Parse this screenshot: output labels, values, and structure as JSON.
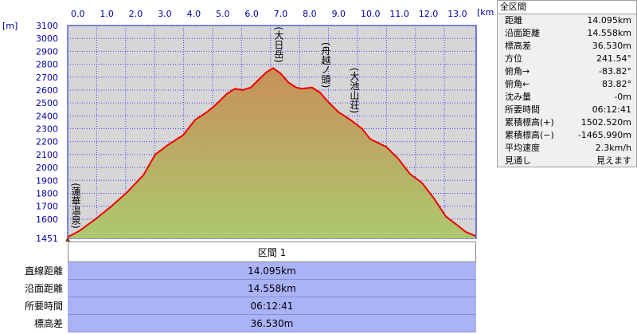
{
  "chart_data": {
    "type": "area",
    "y_unit": "[m]",
    "x_unit": "[km]",
    "x": [
      0,
      0.41,
      0.96,
      1.51,
      2.06,
      2.61,
      3.02,
      3.43,
      3.98,
      4.4,
      4.81,
      5.08,
      5.49,
      5.77,
      6.04,
      6.32,
      6.59,
      6.87,
      7.09,
      7.34,
      7.61,
      7.88,
      8.1,
      8.43,
      8.71,
      8.98,
      9.34,
      9.75,
      10.16,
      10.44,
      10.99,
      11.4,
      11.81,
      12.23,
      12.64,
      13.05,
      13.46,
      13.74,
      14.07
    ],
    "series": [
      {
        "color": "#ee0000",
        "values": [
          1460,
          1510,
          1600,
          1700,
          1810,
          1940,
          2100,
          2170,
          2250,
          2370,
          2430,
          2480,
          2570,
          2610,
          2600,
          2620,
          2680,
          2740,
          2770,
          2730,
          2660,
          2620,
          2610,
          2620,
          2580,
          2510,
          2430,
          2370,
          2300,
          2220,
          2160,
          2070,
          1950,
          1880,
          1760,
          1620,
          1550,
          1500,
          1470
        ]
      }
    ],
    "fill_colors": [
      "#acc870",
      "#c89058"
    ],
    "xlim": [
      0,
      14.095
    ],
    "ylim": [
      1451,
      3100
    ],
    "xticks": [
      {
        "value": 0,
        "label": "0.0"
      },
      {
        "value": 1,
        "label": "1.0"
      },
      {
        "value": 2,
        "label": "2.0"
      },
      {
        "value": 3,
        "label": "3.0"
      },
      {
        "value": 4,
        "label": "4.0"
      },
      {
        "value": 5,
        "label": "5.0"
      },
      {
        "value": 6,
        "label": "6.0"
      },
      {
        "value": 7,
        "label": "7.0"
      },
      {
        "value": 8,
        "label": "8.0"
      },
      {
        "value": 9,
        "label": "9.0"
      },
      {
        "value": 10,
        "label": "10.0"
      },
      {
        "value": 11,
        "label": "11.0"
      },
      {
        "value": 12,
        "label": "12.0"
      },
      {
        "value": 13,
        "label": "13.0"
      }
    ],
    "yticks": [
      1451,
      1600,
      1700,
      1800,
      1900,
      2000,
      2100,
      2200,
      2300,
      2400,
      2500,
      2600,
      2700,
      2800,
      2900,
      3000,
      3100
    ],
    "grid": true,
    "annotations": [
      {
        "text": "(蓮華温泉)",
        "x": 0.14
      },
      {
        "text": "(大日岳)",
        "x": 7.14
      },
      {
        "text": "(舟越ノ頭)",
        "x": 8.76
      },
      {
        "text": "(大池山荘)",
        "x": 9.75
      }
    ]
  },
  "summary_panel": {
    "title": "全区間",
    "rows": [
      [
        "距離",
        "14.095km"
      ],
      [
        "沿面距離",
        "14.558km"
      ],
      [
        "標高差",
        "36.530m"
      ],
      [
        "方位",
        "241.54°"
      ],
      [
        "俯角→",
        "-83.82°"
      ],
      [
        "俯角←",
        "83.82°"
      ],
      [
        "沈み量",
        "-0m"
      ],
      [
        "所要時間",
        "06:12:41"
      ],
      [
        "累積標高(+)",
        "1502.520m"
      ],
      [
        "累積標高(−)",
        "-1465.990m"
      ],
      [
        "平均速度",
        "2.3km/h"
      ],
      [
        "見通し",
        "見えます"
      ]
    ]
  },
  "section_table": {
    "header": "区間 1",
    "rows": [
      [
        "直線距離",
        "14.095km"
      ],
      [
        "沿面距離",
        "14.558km"
      ],
      [
        "所要時間",
        "06:12:41"
      ],
      [
        "標高差",
        "36.530m"
      ]
    ]
  }
}
